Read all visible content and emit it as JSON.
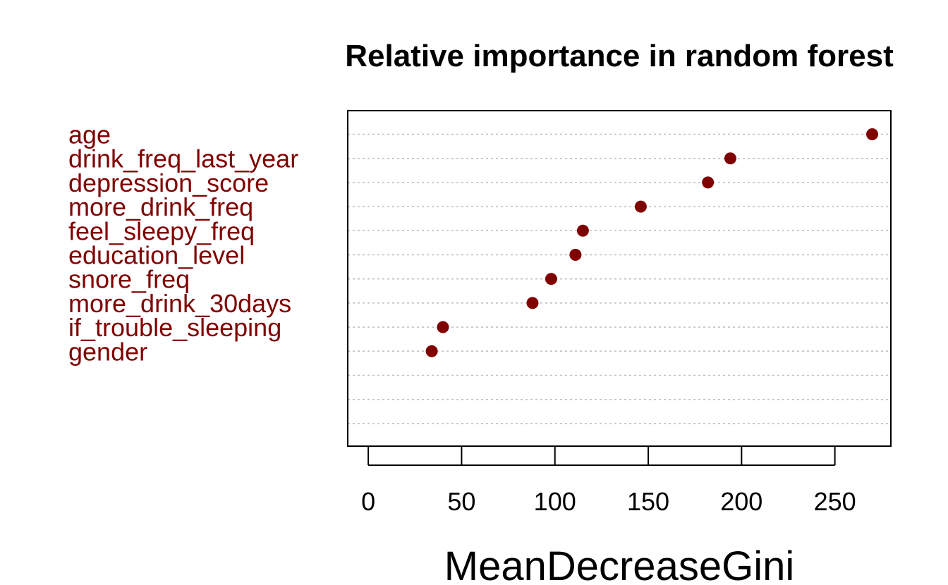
{
  "chart_data": {
    "type": "scatter",
    "title": "Relative importance in random forest",
    "xlabel": "MeanDecreaseGini",
    "ylabel": "",
    "categories": [
      "age",
      "drink_freq_last_year",
      "depression_score",
      "more_drink_freq",
      "feel_sleepy_freq",
      "education_level",
      "snore_freq",
      "more_drink_30days",
      "if_trouble_sleeping",
      "gender"
    ],
    "values": [
      270,
      194,
      182,
      146,
      115,
      111,
      98,
      88,
      40,
      34
    ],
    "xlim": [
      -11,
      280
    ],
    "xticks": [
      0,
      50,
      100,
      150,
      200,
      250
    ],
    "empty_rows_below": 3,
    "grid": "horizontal dotted",
    "point_color": "#800000",
    "label_color": "#800000",
    "grid_color": "#bebebe"
  }
}
